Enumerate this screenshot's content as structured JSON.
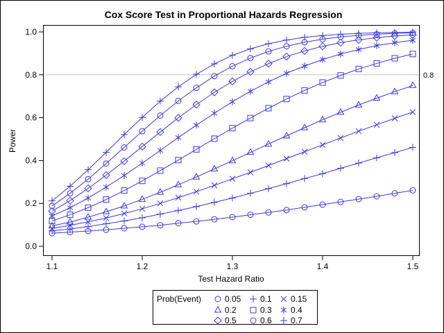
{
  "chart_data": {
    "type": "line",
    "title": "Cox Score Test in Proportional Hazards Regression",
    "xlabel": "Test Hazard Ratio",
    "ylabel": "Power",
    "xlim": [
      1.1,
      1.5
    ],
    "ylim": [
      0.0,
      1.0
    ],
    "x_ticks": [
      "1.1",
      "1.2",
      "1.3",
      "1.4",
      "1.5"
    ],
    "y_ticks": [
      "0.0",
      "0.2",
      "0.4",
      "0.6",
      "0.8",
      "1.0"
    ],
    "reference_line": {
      "y": 0.8,
      "label": "0.8"
    },
    "grid": false,
    "legend_title": "Prob(Event)",
    "legend_position": "bottom",
    "color": "#3a3ad8",
    "x": [
      1.1,
      1.12,
      1.14,
      1.16,
      1.18,
      1.2,
      1.22,
      1.24,
      1.26,
      1.28,
      1.3,
      1.32,
      1.34,
      1.36,
      1.38,
      1.4,
      1.42,
      1.44,
      1.46,
      1.48,
      1.5
    ],
    "series": [
      {
        "name": "0.05",
        "marker": "circle",
        "values": [
          0.061,
          0.066,
          0.071,
          0.077,
          0.084,
          0.091,
          0.098,
          0.108,
          0.116,
          0.126,
          0.136,
          0.147,
          0.158,
          0.169,
          0.182,
          0.194,
          0.207,
          0.22,
          0.233,
          0.247,
          0.261
        ]
      },
      {
        "name": "0.1",
        "marker": "plus",
        "values": [
          0.072,
          0.081,
          0.092,
          0.105,
          0.118,
          0.133,
          0.15,
          0.167,
          0.185,
          0.205,
          0.225,
          0.247,
          0.269,
          0.292,
          0.316,
          0.339,
          0.364,
          0.388,
          0.413,
          0.437,
          0.461
        ]
      },
      {
        "name": "0.15",
        "marker": "x",
        "values": [
          0.083,
          0.098,
          0.114,
          0.132,
          0.153,
          0.175,
          0.2,
          0.227,
          0.255,
          0.284,
          0.315,
          0.345,
          0.377,
          0.409,
          0.441,
          0.473,
          0.505,
          0.537,
          0.567,
          0.597,
          0.626
        ]
      },
      {
        "name": "0.2",
        "marker": "triangle",
        "values": [
          0.095,
          0.113,
          0.136,
          0.161,
          0.188,
          0.219,
          0.252,
          0.287,
          0.323,
          0.361,
          0.399,
          0.438,
          0.477,
          0.515,
          0.553,
          0.59,
          0.625,
          0.659,
          0.691,
          0.721,
          0.75
        ]
      },
      {
        "name": "0.3",
        "marker": "square",
        "values": [
          0.118,
          0.147,
          0.18,
          0.218,
          0.26,
          0.305,
          0.353,
          0.402,
          0.452,
          0.502,
          0.551,
          0.598,
          0.644,
          0.687,
          0.727,
          0.764,
          0.797,
          0.827,
          0.853,
          0.877,
          0.897
        ]
      },
      {
        "name": "0.4",
        "marker": "asterisk",
        "values": [
          0.141,
          0.18,
          0.225,
          0.276,
          0.33,
          0.388,
          0.447,
          0.507,
          0.565,
          0.621,
          0.674,
          0.723,
          0.767,
          0.807,
          0.841,
          0.871,
          0.897,
          0.918,
          0.936,
          0.95,
          0.961
        ]
      },
      {
        "name": "0.5",
        "marker": "diamond",
        "values": [
          0.164,
          0.213,
          0.27,
          0.332,
          0.397,
          0.465,
          0.533,
          0.599,
          0.661,
          0.718,
          0.769,
          0.814,
          0.852,
          0.885,
          0.911,
          0.933,
          0.95,
          0.963,
          0.973,
          0.981,
          0.986
        ]
      },
      {
        "name": "0.6",
        "marker": "circle",
        "values": [
          0.188,
          0.247,
          0.313,
          0.386,
          0.461,
          0.537,
          0.61,
          0.678,
          0.739,
          0.794,
          0.84,
          0.878,
          0.909,
          0.933,
          0.952,
          0.966,
          0.977,
          0.984,
          0.989,
          0.993,
          0.995
        ]
      },
      {
        "name": "0.7",
        "marker": "plus",
        "values": [
          0.212,
          0.28,
          0.357,
          0.438,
          0.521,
          0.601,
          0.677,
          0.744,
          0.802,
          0.851,
          0.891,
          0.921,
          0.945,
          0.962,
          0.975,
          0.983,
          0.989,
          0.993,
          0.996,
          0.997,
          0.999
        ]
      }
    ]
  }
}
